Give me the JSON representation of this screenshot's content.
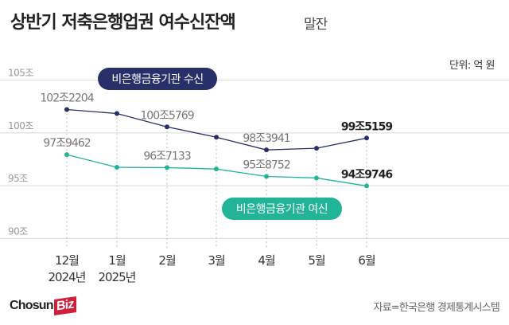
{
  "header": {
    "title": "상반기 저축은행업권 여수신잔액",
    "subtitle": "말잔",
    "unit": "단위: 억 원"
  },
  "footer": {
    "source": "자료=한국은행 경제통계시스템",
    "logo_main": "Chosun",
    "logo_accent": "Biz"
  },
  "chart_data": {
    "type": "line",
    "categories": [
      "12월\n2024년",
      "1월\n2025년",
      "2월",
      "3월",
      "4월",
      "5월",
      "6월"
    ],
    "x_labels": [
      [
        "12월",
        "2024년"
      ],
      [
        "1월",
        "2025년"
      ],
      [
        "2월",
        ""
      ],
      [
        "3월",
        ""
      ],
      [
        "4월",
        ""
      ],
      [
        "5월",
        ""
      ],
      [
        "6월",
        ""
      ]
    ],
    "ylim": [
      90,
      105
    ],
    "y_ticks": [
      90,
      95,
      100,
      105
    ],
    "y_tick_labels": [
      "90조",
      "95조",
      "100조",
      "105조"
    ],
    "grid": true,
    "series": [
      {
        "name": "비은행금융기관 수신",
        "color": "#283069",
        "values": [
          102.2204,
          101.84,
          100.5769,
          99.6,
          98.3941,
          98.55,
          99.5159
        ],
        "labels": [
          "102조2204",
          null,
          "100조5769",
          null,
          "98조3941",
          null,
          "99조5159"
        ]
      },
      {
        "name": "비은행금융기관 여신",
        "color": "#22b497",
        "values": [
          97.9462,
          96.74,
          96.7133,
          96.58,
          95.8752,
          95.73,
          94.9746
        ],
        "labels": [
          "97조9462",
          null,
          "96조7133",
          null,
          "95조8752",
          null,
          "94조9746"
        ]
      }
    ]
  }
}
